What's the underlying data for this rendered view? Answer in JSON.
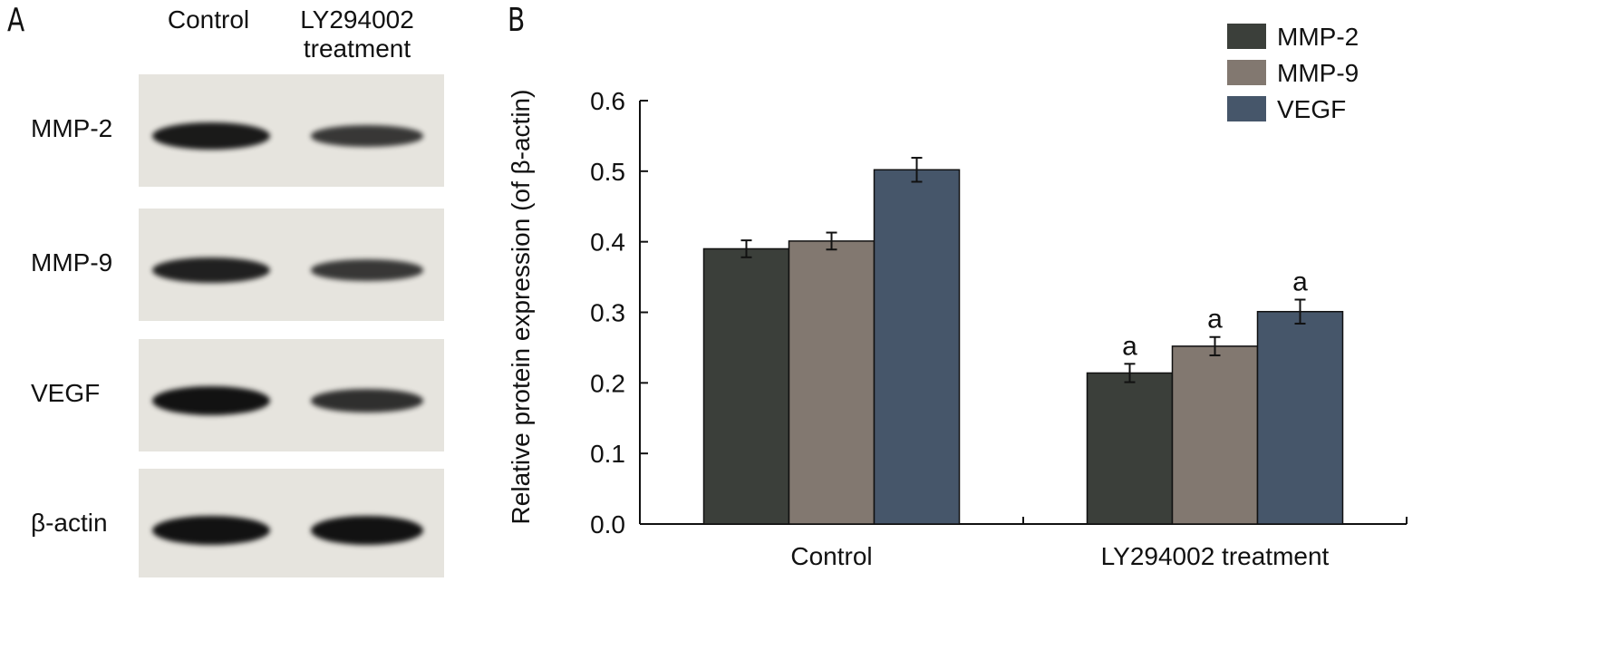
{
  "panel_a": {
    "letter": "A",
    "lanes": [
      "Control",
      "LY294002\ntreatment"
    ],
    "rows": [
      {
        "label": "MMP-2",
        "bands": [
          0.9,
          0.6
        ]
      },
      {
        "label": "MMP-9",
        "bands": [
          0.85,
          0.6
        ]
      },
      {
        "label": "VEGF",
        "bands": [
          1.0,
          0.7
        ]
      },
      {
        "label": "β-actin",
        "bands": [
          1.0,
          1.0
        ]
      }
    ]
  },
  "panel_b": {
    "letter": "B"
  },
  "chart_data": {
    "type": "bar",
    "categories": [
      "Control",
      "LY294002 treatment"
    ],
    "series": [
      {
        "name": "MMP-2",
        "color": "#3b3f3a",
        "values": [
          0.39,
          0.214
        ],
        "errors": [
          0.012,
          0.013
        ],
        "annotations": [
          "",
          "a"
        ]
      },
      {
        "name": "MMP-9",
        "color": "#827870",
        "values": [
          0.401,
          0.252
        ],
        "errors": [
          0.012,
          0.013
        ],
        "annotations": [
          "",
          "a"
        ]
      },
      {
        "name": "VEGF",
        "color": "#46566a",
        "values": [
          0.502,
          0.301
        ],
        "errors": [
          0.017,
          0.017
        ],
        "annotations": [
          "",
          "a"
        ]
      }
    ],
    "ylabel": "Relative protein expression (of β-actin)",
    "xlabel": "",
    "ylim": [
      0.0,
      0.6
    ],
    "yticks": [
      "0.0",
      "0.1",
      "0.2",
      "0.3",
      "0.4",
      "0.5",
      "0.6"
    ],
    "grid": false,
    "legend": "top-right"
  }
}
